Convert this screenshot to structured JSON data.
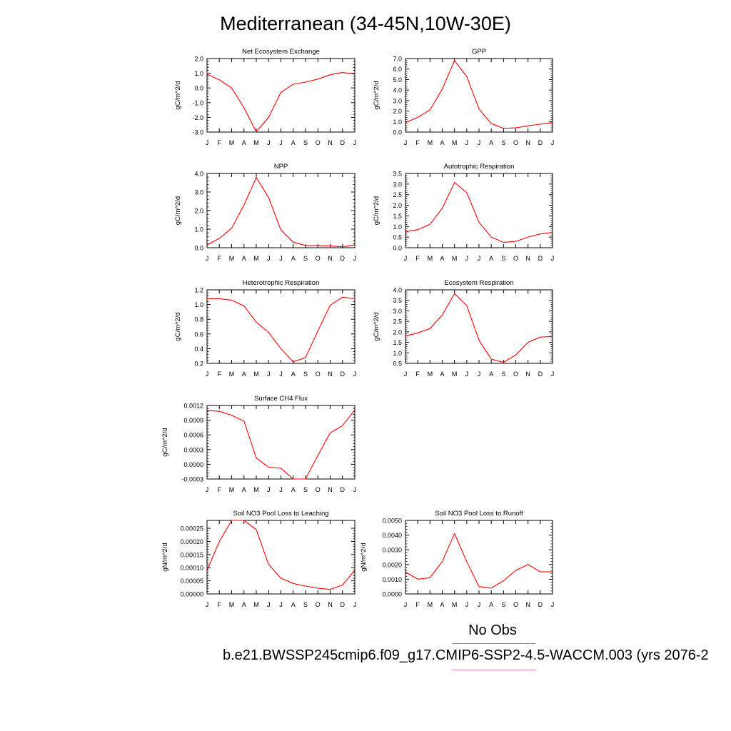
{
  "title": "Mediterranean (34-45N,10W-30E)",
  "legend": {
    "obs_label": "No Obs",
    "obs_color": "#7b7bf0",
    "case_label": "b.e21.BWSSP245cmip6.f09_g17.CMIP6-SSP2-4.5-WACCM.003 (yrs 2076-2",
    "case_color": "#f28a8a"
  },
  "series_color": "#ff0000",
  "chart_data": [
    {
      "type": "line",
      "title": "Net Ecosystem Exchange",
      "ylabel": "gC/m^2/d",
      "categories": [
        "J",
        "F",
        "M",
        "A",
        "M",
        "J",
        "J",
        "A",
        "S",
        "O",
        "N",
        "D",
        "J"
      ],
      "values": [
        0.93,
        0.55,
        0.0,
        -1.35,
        -2.98,
        -2.0,
        -0.3,
        0.25,
        0.4,
        0.6,
        0.9,
        1.05,
        0.95
      ],
      "ylim": [
        -3.0,
        2.0
      ],
      "yticks": [
        -3.0,
        -2.0,
        -1.0,
        0.0,
        1.0,
        2.0
      ],
      "yticklabels": [
        "-3.0",
        "-2.0",
        "-1.0",
        "0.0",
        "1.0",
        "2.0"
      ]
    },
    {
      "type": "line",
      "title": "GPP",
      "ylabel": "gC/m^2/d",
      "categories": [
        "J",
        "F",
        "M",
        "A",
        "M",
        "J",
        "J",
        "A",
        "S",
        "O",
        "N",
        "D",
        "J"
      ],
      "values": [
        0.9,
        1.4,
        2.1,
        4.1,
        6.8,
        5.3,
        2.2,
        0.8,
        0.35,
        0.4,
        0.6,
        0.75,
        0.9
      ],
      "ylim": [
        0.0,
        7.0
      ],
      "yticks": [
        0,
        1,
        2,
        3,
        4,
        5,
        6,
        7
      ],
      "yticklabels": [
        "0.0",
        "1.0",
        "2.0",
        "3.0",
        "4.0",
        "5.0",
        "6.0",
        "7.0"
      ]
    },
    {
      "type": "line",
      "title": "NPP",
      "ylabel": "gC/m^2/d",
      "categories": [
        "J",
        "F",
        "M",
        "A",
        "M",
        "J",
        "J",
        "A",
        "S",
        "O",
        "N",
        "D",
        "J"
      ],
      "values": [
        0.15,
        0.5,
        1.05,
        2.3,
        3.78,
        2.7,
        0.95,
        0.3,
        0.12,
        0.12,
        0.1,
        0.05,
        0.15
      ],
      "ylim": [
        0.0,
        4.0
      ],
      "yticks": [
        0,
        1,
        2,
        3,
        4
      ],
      "yticklabels": [
        "0.0",
        "1.0",
        "2.0",
        "3.0",
        "4.0"
      ]
    },
    {
      "type": "line",
      "title": "Autotrophic Respiration",
      "ylabel": "gC/m^2/d",
      "categories": [
        "J",
        "F",
        "M",
        "A",
        "M",
        "J",
        "J",
        "A",
        "S",
        "O",
        "N",
        "D",
        "J"
      ],
      "values": [
        0.75,
        0.85,
        1.1,
        1.85,
        3.08,
        2.6,
        1.2,
        0.5,
        0.25,
        0.3,
        0.5,
        0.65,
        0.72
      ],
      "ylim": [
        0.0,
        3.5
      ],
      "yticks": [
        0,
        0.5,
        1,
        1.5,
        2,
        2.5,
        3,
        3.5
      ],
      "yticklabels": [
        "0.0",
        "0.5",
        "1.0",
        "1.5",
        "2.0",
        "2.5",
        "3.0",
        "3.5"
      ]
    },
    {
      "type": "line",
      "title": "Heterotrophic Respiration",
      "ylabel": "gC/m^2/d",
      "categories": [
        "J",
        "F",
        "M",
        "A",
        "M",
        "J",
        "J",
        "A",
        "S",
        "O",
        "N",
        "D",
        "J"
      ],
      "values": [
        1.08,
        1.08,
        1.06,
        0.98,
        0.76,
        0.62,
        0.4,
        0.22,
        0.28,
        0.64,
        0.99,
        1.1,
        1.08
      ],
      "ylim": [
        0.2,
        1.2
      ],
      "yticks": [
        0.2,
        0.4,
        0.6,
        0.8,
        1.0,
        1.2
      ],
      "yticklabels": [
        "0.2",
        "0.4",
        "0.6",
        "0.8",
        "1.0",
        "1.2"
      ]
    },
    {
      "type": "line",
      "title": "Ecosystem Respiration",
      "ylabel": "gC/m^2/d",
      "categories": [
        "J",
        "F",
        "M",
        "A",
        "M",
        "J",
        "J",
        "A",
        "S",
        "O",
        "N",
        "D",
        "J"
      ],
      "values": [
        1.8,
        1.95,
        2.15,
        2.8,
        3.82,
        3.25,
        1.6,
        0.7,
        0.55,
        0.9,
        1.5,
        1.75,
        1.78
      ],
      "ylim": [
        0.5,
        4.0
      ],
      "yticks": [
        0.5,
        1,
        1.5,
        2,
        2.5,
        3,
        3.5,
        4
      ],
      "yticklabels": [
        "0.5",
        "1.0",
        "1.5",
        "2.0",
        "2.5",
        "3.0",
        "3.5",
        "4.0"
      ]
    },
    {
      "type": "line",
      "title": "Surface CH4 Flux",
      "ylabel": "gC/m^2/d",
      "categories": [
        "J",
        "F",
        "M",
        "A",
        "M",
        "J",
        "J",
        "A",
        "S",
        "O",
        "N",
        "D",
        "J"
      ],
      "values": [
        0.0011,
        0.00108,
        0.001,
        0.00088,
        0.00013,
        -6e-05,
        -8e-05,
        -0.0003,
        -0.0003,
        0.00018,
        0.00064,
        0.00079,
        0.00111
      ],
      "ylim": [
        -0.0003,
        0.0012
      ],
      "yticks": [
        -0.0003,
        0,
        0.0003,
        0.0006,
        0.0009,
        0.0012
      ],
      "yticklabels": [
        "-0.0003",
        "0.0000",
        "0.0003",
        "0.0006",
        "0.0009",
        "0.0012"
      ]
    },
    {
      "type": "line",
      "title": "Soil NO3 Pool Loss to Leaching",
      "ylabel": "gN/m^2/d",
      "categories": [
        "J",
        "F",
        "M",
        "A",
        "M",
        "J",
        "J",
        "A",
        "S",
        "O",
        "N",
        "D",
        "J"
      ],
      "values": [
        9e-05,
        0.0002,
        0.00028,
        0.00029,
        0.000245,
        0.000112,
        6e-05,
        4e-05,
        3e-05,
        2.2e-05,
        1.7e-05,
        3.4e-05,
        9e-05
      ],
      "ylim": [
        0.0,
        0.00028
      ],
      "yticks": [
        0,
        5e-05,
        0.0001,
        0.00015,
        0.0002,
        0.00025
      ],
      "yticklabels": [
        "0.00000",
        "0.00005",
        "0.00010",
        "0.00015",
        "0.00020",
        "0.00025"
      ]
    },
    {
      "type": "line",
      "title": "Soil NO3 Pool Loss to Runoff",
      "ylabel": "gN/m^2/d",
      "categories": [
        "J",
        "F",
        "M",
        "A",
        "M",
        "J",
        "J",
        "A",
        "S",
        "O",
        "N",
        "D",
        "J"
      ],
      "values": [
        0.0015,
        0.001,
        0.0011,
        0.0022,
        0.0041,
        0.0022,
        0.0005,
        0.0004,
        0.0009,
        0.0016,
        0.002,
        0.0015,
        0.0015
      ],
      "ylim": [
        0.0,
        0.005
      ],
      "yticks": [
        0,
        0.001,
        0.002,
        0.003,
        0.004,
        0.005
      ],
      "yticklabels": [
        "0.0000",
        "0.0010",
        "0.0020",
        "0.0030",
        "0.0040",
        "0.0050"
      ]
    }
  ]
}
